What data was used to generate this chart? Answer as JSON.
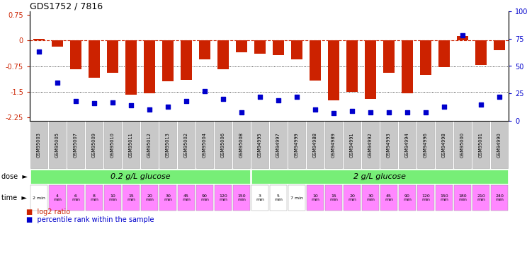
{
  "title": "GDS1752 / 7816",
  "samples": [
    "GSM95003",
    "GSM95005",
    "GSM95007",
    "GSM95009",
    "GSM95010",
    "GSM95011",
    "GSM95012",
    "GSM95013",
    "GSM95002",
    "GSM95004",
    "GSM95006",
    "GSM95008",
    "GSM94995",
    "GSM94997",
    "GSM94999",
    "GSM94988",
    "GSM94989",
    "GSM94991",
    "GSM94992",
    "GSM94993",
    "GSM94994",
    "GSM94996",
    "GSM94998",
    "GSM95000",
    "GSM95001",
    "GSM94990"
  ],
  "log2_ratio": [
    0.05,
    -0.18,
    -0.85,
    -1.1,
    -0.95,
    -1.58,
    -1.55,
    -1.2,
    -1.15,
    -0.55,
    -0.85,
    -0.35,
    -0.38,
    -0.42,
    -0.55,
    -1.18,
    -1.75,
    -1.5,
    -1.72,
    -0.95,
    -1.55,
    -1.0,
    -0.78,
    0.12,
    -0.72,
    -0.28
  ],
  "percentile_rank": [
    63,
    35,
    18,
    16,
    17,
    14,
    10,
    13,
    18,
    27,
    20,
    8,
    22,
    19,
    22,
    10,
    7,
    9,
    8,
    8,
    8,
    8,
    13,
    78,
    15,
    22
  ],
  "time_labels": [
    "2 min",
    "4\nmin",
    "6\nmin",
    "8\nmin",
    "10\nmin",
    "15\nmin",
    "20\nmin",
    "30\nmin",
    "45\nmin",
    "90\nmin",
    "120\nmin",
    "150\nmin",
    "3\nmin",
    "5\nmin",
    "7 min",
    "10\nmin",
    "15\nmin",
    "20\nmin",
    "30\nmin",
    "45\nmin",
    "90\nmin",
    "120\nmin",
    "150\nmin",
    "180\nmin",
    "210\nmin",
    "240\nmin"
  ],
  "time_colors": [
    "#ffffff",
    "#FF88FF",
    "#FF88FF",
    "#FF88FF",
    "#FF88FF",
    "#FF88FF",
    "#FF88FF",
    "#FF88FF",
    "#FF88FF",
    "#FF88FF",
    "#FF88FF",
    "#FF88FF",
    "#ffffff",
    "#ffffff",
    "#ffffff",
    "#FF88FF",
    "#FF88FF",
    "#FF88FF",
    "#FF88FF",
    "#FF88FF",
    "#FF88FF",
    "#FF88FF",
    "#FF88FF",
    "#FF88FF",
    "#FF88FF",
    "#FF88FF"
  ],
  "dose_group1_label": "0.2 g/L glucose",
  "dose_group2_label": "2 g/L glucose",
  "dose_group1_count": 12,
  "dose_group2_count": 14,
  "dose_color": "#77EE77",
  "bar_color": "#CC2200",
  "dot_color": "#0000CC",
  "ylim": [
    -2.35,
    0.85
  ],
  "yticks_left": [
    0.75,
    0,
    -0.75,
    -1.5,
    -2.25
  ],
  "yticks_right": [
    100,
    75,
    50,
    25,
    0
  ],
  "sample_row_color": "#C8C8C8",
  "legend_red_label": "log2 ratio",
  "legend_blue_label": "percentile rank within the sample"
}
